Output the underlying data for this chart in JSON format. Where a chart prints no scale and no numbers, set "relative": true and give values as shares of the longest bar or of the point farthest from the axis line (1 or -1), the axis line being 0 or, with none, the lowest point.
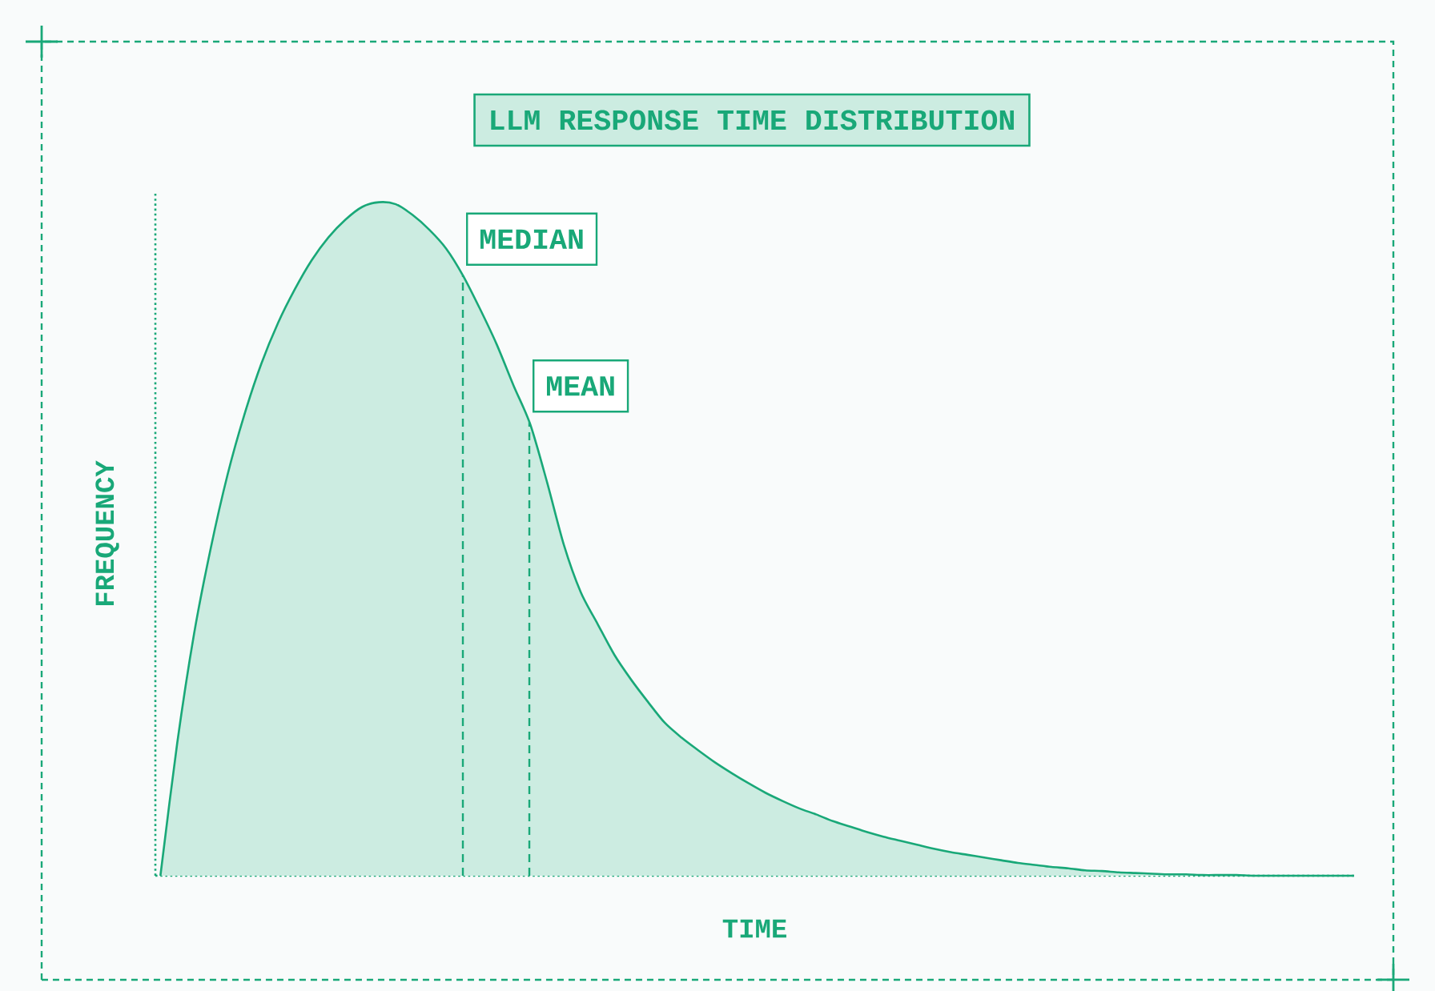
{
  "chart_data": {
    "type": "area",
    "title": "LLM RESPONSE TIME DISTRIBUTION",
    "xlabel": "TIME",
    "ylabel": "FREQUENCY",
    "relative": true,
    "color": "#19a878",
    "categories": [
      null,
      null,
      null,
      null,
      null,
      null,
      null,
      null,
      null,
      null,
      null,
      null,
      null,
      null,
      null,
      null,
      null,
      null,
      null,
      null,
      null,
      null,
      null,
      null,
      null,
      null,
      null,
      null,
      null,
      null,
      null,
      null,
      null,
      null,
      null,
      null,
      null,
      null,
      null,
      null,
      null,
      null,
      null,
      null,
      null,
      null,
      null,
      null,
      null,
      null,
      null,
      null,
      null,
      null,
      null,
      null,
      null,
      null,
      null,
      null,
      null,
      null,
      null,
      null,
      null,
      null,
      null,
      null,
      null,
      null,
      null,
      null
    ],
    "values": [
      0,
      0.197,
      0.359,
      0.487,
      0.596,
      0.685,
      0.76,
      0.821,
      0.871,
      0.914,
      0.948,
      0.974,
      0.993,
      1,
      0.997,
      0.981,
      0.959,
      0.931,
      0.891,
      0.842,
      0.789,
      0.728,
      0.67,
      0.584,
      0.491,
      0.421,
      0.374,
      0.328,
      0.291,
      0.258,
      0.227,
      0.205,
      0.186,
      0.168,
      0.152,
      0.137,
      0.123,
      0.111,
      0.1,
      0.091,
      0.081,
      0.073,
      0.065,
      0.058,
      0.052,
      0.046,
      0.04,
      0.035,
      0.031,
      0.027,
      0.023,
      0.019,
      0.016,
      0.013,
      0.011,
      0.008,
      0.007,
      0.005,
      0.004,
      0.003,
      0.002,
      0.002,
      0.001,
      0.001,
      0.001,
      0,
      0,
      0,
      0,
      0,
      0,
      0
    ],
    "annotations": [
      "MEDIAN",
      "MEAN"
    ]
  }
}
